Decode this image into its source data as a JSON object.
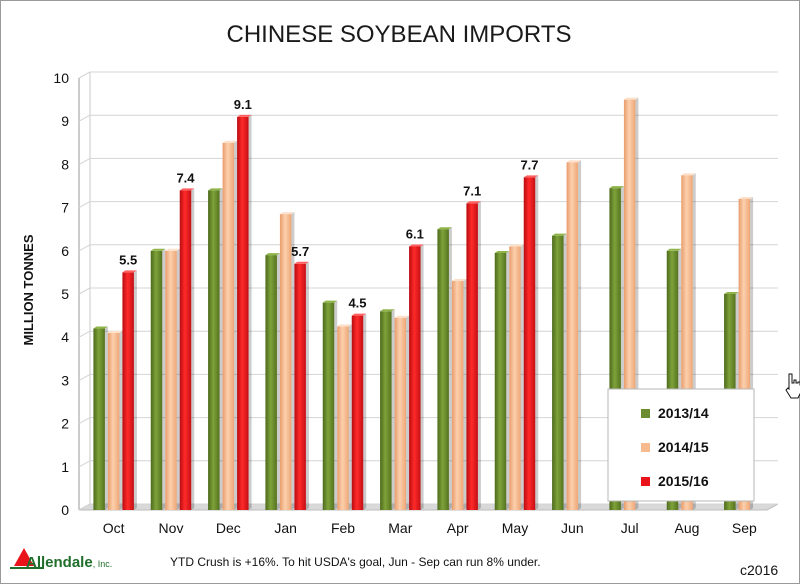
{
  "chart_data": {
    "type": "bar",
    "title": "CHINESE SOYBEAN IMPORTS",
    "ylabel": "MILLION TONNES",
    "xlabel": "",
    "ylim": [
      0,
      10
    ],
    "yticks": [
      0,
      1,
      2,
      3,
      4,
      5,
      6,
      7,
      8,
      9,
      10
    ],
    "grid": true,
    "legend_position": "bottom-right",
    "categories": [
      "Oct",
      "Nov",
      "Dec",
      "Jan",
      "Feb",
      "Mar",
      "Apr",
      "May",
      "Jun",
      "Jul",
      "Aug",
      "Sep"
    ],
    "series": [
      {
        "name": "2013/14",
        "color": "#6b8c2e",
        "values": [
          4.2,
          6.0,
          7.4,
          5.9,
          4.8,
          4.6,
          6.5,
          5.95,
          6.35,
          7.45,
          6.0,
          5.0
        ]
      },
      {
        "name": "2014/15",
        "color": "#f7b98e",
        "values": [
          4.1,
          6.0,
          8.5,
          6.85,
          4.25,
          4.45,
          5.3,
          6.1,
          8.05,
          9.5,
          7.75,
          7.2
        ]
      },
      {
        "name": "2015/16",
        "color": "#e8141a",
        "values": [
          5.5,
          7.4,
          9.1,
          5.7,
          4.5,
          6.1,
          7.1,
          7.7,
          null,
          null,
          null,
          null
        ],
        "data_labels": [
          "5.5",
          "7.4",
          "9.1",
          "5.7",
          "4.5",
          "6.1",
          "7.1",
          "7.7",
          "",
          "",
          "",
          ""
        ]
      }
    ]
  },
  "footer": {
    "note": "YTD Crush is +16%. To hit USDA's goal, Jun - Sep can run 8% under.",
    "copyright": "c2016",
    "logo_name": "Allendale",
    "logo_suffix": ", Inc."
  },
  "icons": {
    "cursor": "hand-pointer-icon",
    "logo": "allendale-logo-icon"
  }
}
